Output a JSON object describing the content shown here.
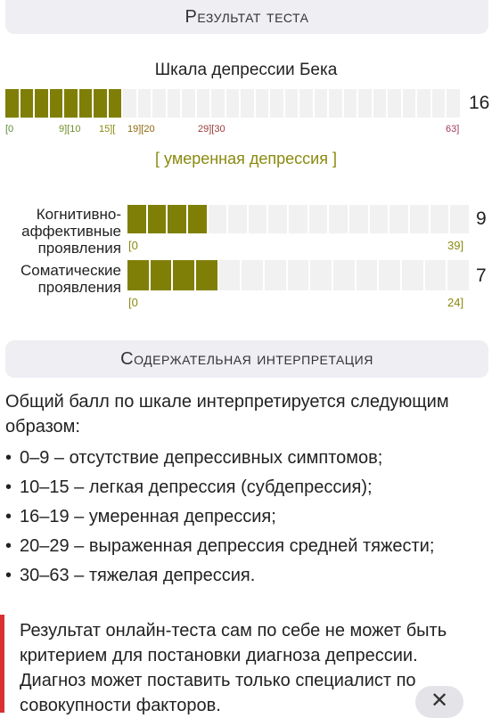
{
  "result_header": "Результат теста",
  "main_scale": {
    "title": "Шкала депрессии Бека",
    "score": "16",
    "value": 16,
    "max": 63,
    "ticks": [
      {
        "text": "[0",
        "color": "#5a8a3a"
      },
      {
        "text": "9][10",
        "color": "#6f8f2a"
      },
      {
        "text": "15][",
        "color": "#8a8a10"
      },
      {
        "text": "19][20",
        "color": "#8f6a10"
      },
      {
        "text": "29][30",
        "color": "#9a3a3a"
      },
      {
        "text": "63]",
        "color": "#a33a5a"
      }
    ],
    "verdict": "[ умеренная депрессия ]"
  },
  "subscales": [
    {
      "label": "Когнитивно-аффективные проявления",
      "score": "9",
      "value": 9,
      "min_label": "[0",
      "max_label": "39]"
    },
    {
      "label": "Соматические проявления",
      "score": "7",
      "value": 7,
      "min_label": "[0",
      "max_label": "24]"
    }
  ],
  "interp_header": "Содержательная интерпретация",
  "interp_intro": "Общий балл по шкале интерпретируется следующим образом:",
  "interp_items": [
    "0–9 – отсутствие депрессивных симптомов;",
    "10–15 – легкая депрессия (субдепрессия);",
    "16–19 – умеренная депрессия;",
    "20–29 – выраженная депрессия средней тяжести;",
    "30–63 – тяжелая депрессия."
  ],
  "disclaimer": "Результат онлайн-теста сам по себе не может быть критерием для постановки диагноза депрессии. Диагноз может поставить только специалист по совокупности факторов.",
  "colors": {
    "bar_fill": "#7f7f08",
    "accent_red": "#d93030"
  },
  "close_icon": "close-icon"
}
